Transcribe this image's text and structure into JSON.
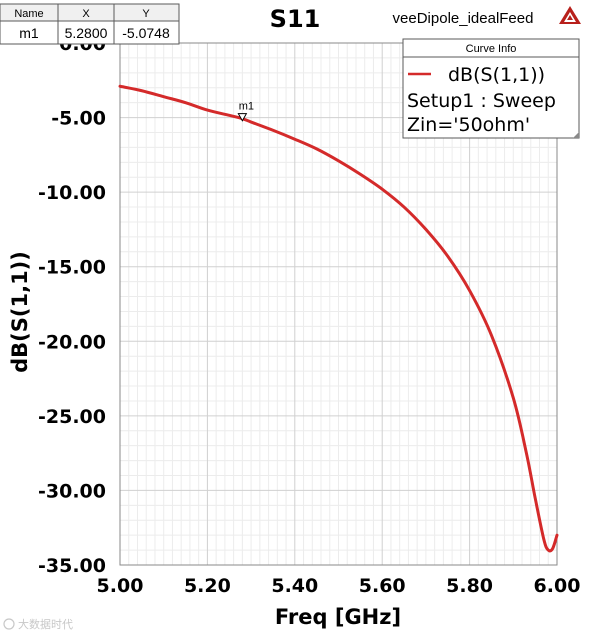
{
  "chart_data": {
    "type": "line",
    "title": "S11",
    "project": "veeDipole_idealFeed",
    "xlabel": "Freq [GHz]",
    "ylabel": "dB(S(1,1))",
    "xlim": [
      5.0,
      6.0
    ],
    "ylim": [
      -35.0,
      0.0
    ],
    "grid": true,
    "x_tick_labels": [
      "5.00",
      "5.20",
      "5.40",
      "5.60",
      "5.80",
      "6.00"
    ],
    "y_tick_labels": [
      "0.00",
      "-5.00",
      "-10.00",
      "-15.00",
      "-20.00",
      "-25.00",
      "-30.00",
      "-35.00"
    ],
    "series": [
      {
        "name": "dB(S(1,1))",
        "color": "#d42a2a",
        "x": [
          5.0,
          5.05,
          5.1,
          5.15,
          5.2,
          5.25,
          5.28,
          5.3,
          5.35,
          5.4,
          5.45,
          5.5,
          5.55,
          5.6,
          5.65,
          5.7,
          5.75,
          5.8,
          5.85,
          5.9,
          5.93,
          5.95,
          5.97,
          5.98,
          5.99,
          6.0
        ],
        "y": [
          -2.9,
          -3.2,
          -3.6,
          -4.0,
          -4.5,
          -4.85,
          -5.0748,
          -5.3,
          -5.85,
          -6.45,
          -7.1,
          -7.9,
          -8.8,
          -9.8,
          -11.0,
          -12.5,
          -14.3,
          -16.6,
          -19.6,
          -23.8,
          -27.5,
          -30.5,
          -33.3,
          -34.0,
          -33.9,
          -33.0
        ]
      }
    ],
    "legend": {
      "title": "Curve Info",
      "lines": [
        "dB(S(1,1))",
        "Setup1 : Sweep",
        "Zin='50ohm'"
      ],
      "position": "top-right"
    },
    "marker_table": {
      "headers": [
        "Name",
        "X",
        "Y"
      ],
      "rows": [
        [
          "m1",
          "5.2800",
          "-5.0748"
        ]
      ]
    },
    "markers": [
      {
        "name": "m1",
        "x": 5.28,
        "y": -5.0748
      }
    ]
  },
  "watermark": "大数据时代"
}
